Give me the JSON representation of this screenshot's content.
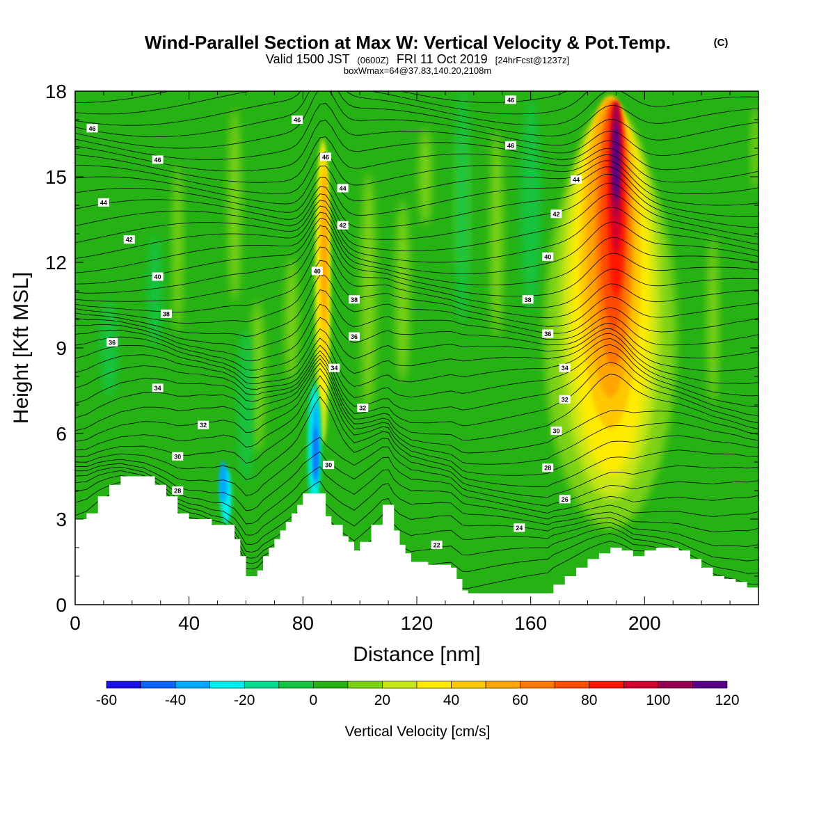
{
  "chart_data": {
    "type": "heatmap",
    "title_main": "Wind-Parallel Section at Max W: Vertical Velocity & Pot.Temp.",
    "title_mark": "(C)",
    "subtitle_valid": "Valid 1500 JST",
    "subtitle_z": "(0600Z)",
    "subtitle_date": "FRI 11 Oct 2019",
    "subtitle_fcst": "[24hrFcst@1237z]",
    "subtitle_box": "boxWmax=64@37.83,140.20,2108m",
    "xlabel": "Distance [nm]",
    "ylabel": "Height [Kft MSL]",
    "xlim": [
      0,
      240
    ],
    "ylim": [
      0,
      18
    ],
    "x_ticks": [
      "0",
      "40",
      "80",
      "120",
      "160",
      "200"
    ],
    "y_ticks": [
      "0",
      "3",
      "6",
      "9",
      "12",
      "15",
      "18"
    ],
    "colorbar": {
      "label": "Vertical Velocity [cm/s]",
      "levels": [
        -60,
        -50,
        -40,
        -30,
        -20,
        -10,
        0,
        10,
        20,
        30,
        40,
        50,
        60,
        70,
        80,
        90,
        100,
        110,
        120
      ],
      "tick_labels": [
        "-60",
        "-40",
        "-20",
        "0",
        "20",
        "40",
        "60",
        "80",
        "100",
        "120"
      ],
      "colors": [
        "#1a10e6",
        "#0a64ff",
        "#00a8ff",
        "#00f0f0",
        "#00dc96",
        "#14c341",
        "#26b214",
        "#7dd214",
        "#c8e614",
        "#ffeb00",
        "#ffc800",
        "#ffa500",
        "#ff7800",
        "#ff4b00",
        "#ff1400",
        "#d2002d",
        "#960050",
        "#5a0087"
      ]
    },
    "terrain_profile_kft": {
      "x_nm": [
        0,
        4,
        8,
        12,
        16,
        20,
        24,
        28,
        32,
        36,
        40,
        44,
        48,
        52,
        56,
        58,
        60,
        62,
        64,
        66,
        68,
        70,
        72,
        74,
        76,
        78,
        80,
        84,
        86,
        88,
        90,
        94,
        96,
        98,
        100,
        104,
        108,
        110,
        112,
        114,
        116,
        118,
        120,
        124,
        128,
        132,
        134,
        136,
        138,
        142,
        150,
        160,
        166,
        168,
        172,
        176,
        180,
        184,
        188,
        192,
        196,
        200,
        204,
        208,
        212,
        216,
        220,
        224,
        228,
        232,
        236,
        240
      ],
      "height_kft": [
        3.0,
        3.2,
        3.8,
        4.2,
        4.5,
        4.5,
        4.5,
        4.2,
        3.8,
        3.2,
        3.0,
        3.0,
        2.8,
        2.8,
        2.3,
        1.7,
        1.0,
        1.0,
        1.2,
        1.7,
        2.0,
        2.3,
        2.6,
        2.9,
        3.2,
        3.5,
        3.9,
        3.9,
        3.9,
        3.1,
        2.8,
        2.4,
        2.2,
        1.9,
        2.2,
        2.8,
        3.5,
        3.5,
        2.6,
        2.1,
        1.8,
        1.5,
        1.5,
        1.4,
        1.4,
        1.3,
        0.9,
        0.5,
        0.4,
        0.4,
        0.4,
        0.4,
        0.4,
        0.7,
        1.0,
        1.3,
        1.6,
        1.8,
        2.0,
        1.9,
        1.7,
        1.9,
        2.0,
        2.0,
        1.9,
        1.6,
        1.3,
        1.0,
        0.9,
        0.8,
        0.6,
        0.6
      ]
    },
    "theta_contour_labels": [
      {
        "text": "46",
        "x": 6,
        "y": 16.7
      },
      {
        "text": "46",
        "x": 29,
        "y": 15.6
      },
      {
        "text": "46",
        "x": 78,
        "y": 17.0
      },
      {
        "text": "46",
        "x": 88,
        "y": 15.7
      },
      {
        "text": "46",
        "x": 153,
        "y": 17.7
      },
      {
        "text": "46",
        "x": 153,
        "y": 16.1
      },
      {
        "text": "44",
        "x": 10,
        "y": 14.1
      },
      {
        "text": "44",
        "x": 94,
        "y": 14.6
      },
      {
        "text": "44",
        "x": 176,
        "y": 14.9
      },
      {
        "text": "42",
        "x": 19,
        "y": 12.8
      },
      {
        "text": "42",
        "x": 94,
        "y": 13.3
      },
      {
        "text": "42",
        "x": 169,
        "y": 13.7
      },
      {
        "text": "40",
        "x": 29,
        "y": 11.5
      },
      {
        "text": "40",
        "x": 85,
        "y": 11.7
      },
      {
        "text": "40",
        "x": 166,
        "y": 12.2
      },
      {
        "text": "38",
        "x": 32,
        "y": 10.2
      },
      {
        "text": "38",
        "x": 98,
        "y": 10.7
      },
      {
        "text": "38",
        "x": 159,
        "y": 10.7
      },
      {
        "text": "36",
        "x": 13,
        "y": 9.2
      },
      {
        "text": "36",
        "x": 98,
        "y": 9.4
      },
      {
        "text": "36",
        "x": 166,
        "y": 9.5
      },
      {
        "text": "34",
        "x": 29,
        "y": 7.6
      },
      {
        "text": "34",
        "x": 91,
        "y": 8.3
      },
      {
        "text": "34",
        "x": 172,
        "y": 8.3
      },
      {
        "text": "32",
        "x": 45,
        "y": 6.3
      },
      {
        "text": "32",
        "x": 101,
        "y": 6.9
      },
      {
        "text": "32",
        "x": 172,
        "y": 7.2
      },
      {
        "text": "30",
        "x": 36,
        "y": 5.2
      },
      {
        "text": "30",
        "x": 89,
        "y": 4.9
      },
      {
        "text": "30",
        "x": 169,
        "y": 6.1
      },
      {
        "text": "28",
        "x": 36,
        "y": 4.0
      },
      {
        "text": "28",
        "x": 166,
        "y": 4.8
      },
      {
        "text": "26",
        "x": 172,
        "y": 3.7
      },
      {
        "text": "24",
        "x": 156,
        "y": 2.7
      },
      {
        "text": "22",
        "x": 127,
        "y": 2.1
      }
    ],
    "updraft_cores": [
      {
        "x": 188,
        "z_top": 18,
        "peak_cm_s": 120
      },
      {
        "x": 87,
        "z_top": 17,
        "peak_cm_s": 50
      },
      {
        "x": 84,
        "z_top": 8,
        "peak_cm_s": -50
      }
    ]
  }
}
